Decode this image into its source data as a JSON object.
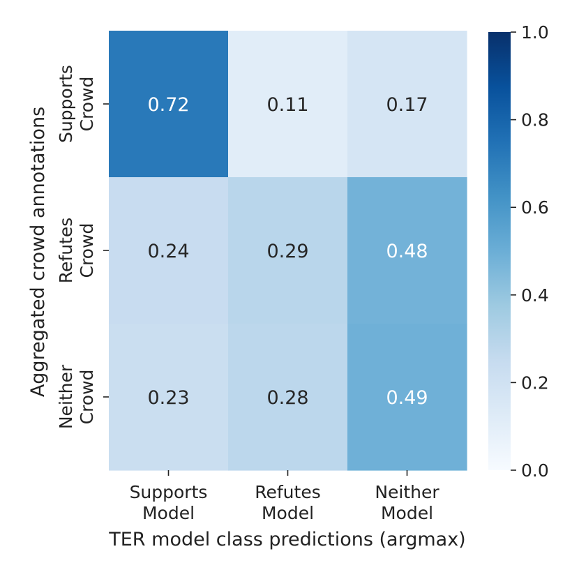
{
  "chart_data": {
    "type": "heatmap",
    "title": "",
    "xlabel": "TER model class predictions (argmax)",
    "ylabel": "Aggregated crowd annotations",
    "x_categories": [
      [
        "Supports",
        "Model"
      ],
      [
        "Refutes",
        "Model"
      ],
      [
        "Neither",
        "Model"
      ]
    ],
    "y_categories": [
      [
        "Supports",
        "Crowd"
      ],
      [
        "Refutes",
        "Crowd"
      ],
      [
        "Neither",
        "Crowd"
      ]
    ],
    "values": [
      [
        0.72,
        0.11,
        0.17
      ],
      [
        0.24,
        0.29,
        0.48
      ],
      [
        0.23,
        0.28,
        0.49
      ]
    ],
    "cell_labels": [
      [
        "0.72",
        "0.11",
        "0.17"
      ],
      [
        "0.24",
        "0.29",
        "0.48"
      ],
      [
        "0.23",
        "0.28",
        "0.49"
      ]
    ],
    "colorbar": {
      "range": [
        0,
        1
      ],
      "ticks": [
        0.0,
        0.2,
        0.4,
        0.6,
        0.8,
        1.0
      ],
      "tick_labels": [
        "0.0",
        "0.2",
        "0.4",
        "0.6",
        "0.8",
        "1.0"
      ],
      "colormap": "Blues"
    },
    "grid": false
  }
}
